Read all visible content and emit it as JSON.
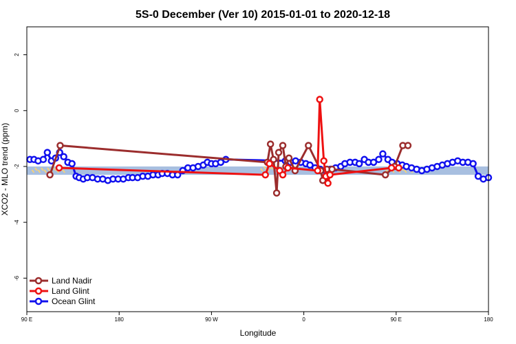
{
  "chart_data": {
    "type": "line",
    "title": "5S-0 December (Ver 10)   2015-01-01 to 2020-12-18",
    "xlabel": "Longitude",
    "ylabel": "XCO2 - MLO trend (ppm)",
    "xlim": [
      90,
      540
    ],
    "ylim": [
      -7.2,
      3.0
    ],
    "x_ticks": [
      {
        "value": 90,
        "label": "90 E"
      },
      {
        "value": 180,
        "label": "180"
      },
      {
        "value": 270,
        "label": "90 W"
      },
      {
        "value": 360,
        "label": "0"
      },
      {
        "value": 450,
        "label": "90 E"
      },
      {
        "value": 540,
        "label": "180"
      }
    ],
    "y_ticks": [
      {
        "value": 2,
        "label": "2"
      },
      {
        "value": 0,
        "label": "0"
      },
      {
        "value": -2,
        "label": "-2"
      },
      {
        "value": -4,
        "label": "-4"
      },
      {
        "value": -6,
        "label": "-6"
      }
    ],
    "reference_band": {
      "y_min": -2.3,
      "y_max": -2.0,
      "color": "#a8bfe0"
    },
    "land_mask": {
      "color": "#f5d27a",
      "label": "land regions (shaded)"
    },
    "series": [
      {
        "name": "Land Nadir",
        "color": "#9b2d2d",
        "x": [
          112.5,
          122.5,
          324.5,
          327.5,
          330.5,
          333.5,
          335.5,
          339.5,
          342.5,
          345.5,
          351.5,
          364.5,
          376.5,
          378.5,
          382.5,
          387.5,
          439.5,
          448.5,
          456.5,
          461.5
        ],
        "y": [
          -2.3,
          -1.25,
          -1.85,
          -1.2,
          -1.75,
          -2.95,
          -1.5,
          -1.25,
          -2.0,
          -1.7,
          -2.15,
          -1.25,
          -2.15,
          -2.5,
          -2.1,
          -2.1,
          -2.3,
          -2.0,
          -1.25,
          -1.25
        ]
      },
      {
        "name": "Land Glint",
        "color": "#ee1111",
        "x": [
          121.5,
          322.5,
          326.5,
          336.5,
          339.5,
          344.5,
          373.5,
          375.5,
          379.5,
          381.5,
          383.5,
          385.5,
          445.5,
          452.5
        ],
        "y": [
          -2.05,
          -2.3,
          -1.9,
          -2.15,
          -2.3,
          -2.05,
          -2.15,
          0.4,
          -1.8,
          -2.35,
          -2.6,
          -2.3,
          -2.05,
          -2.05
        ]
      },
      {
        "name": "Ocean Glint",
        "color": "#1111ee",
        "x": [
          93,
          97,
          101,
          106,
          110,
          114,
          118,
          122,
          126,
          130,
          134,
          138,
          141,
          145,
          149,
          154,
          159,
          164,
          169,
          174,
          179,
          184,
          189,
          193,
          198,
          203,
          208,
          213,
          218,
          222,
          227,
          232,
          237,
          242,
          247,
          252,
          257,
          262,
          266,
          270,
          274,
          279,
          284,
          342,
          347,
          352,
          357,
          362,
          366,
          371,
          376,
          381,
          386,
          391,
          396,
          400,
          405,
          410,
          414,
          419,
          423,
          428,
          433,
          437,
          442,
          446,
          451,
          456,
          460,
          465,
          470,
          475,
          480,
          485,
          490,
          495,
          500,
          505,
          510,
          515,
          520,
          525,
          530,
          535,
          540
        ],
        "y": [
          -1.75,
          -1.75,
          -1.8,
          -1.75,
          -1.5,
          -1.8,
          -1.7,
          -1.5,
          -1.65,
          -1.85,
          -1.9,
          -2.35,
          -2.4,
          -2.45,
          -2.4,
          -2.4,
          -2.45,
          -2.45,
          -2.5,
          -2.45,
          -2.45,
          -2.45,
          -2.4,
          -2.4,
          -2.4,
          -2.35,
          -2.35,
          -2.3,
          -2.3,
          -2.25,
          -2.25,
          -2.3,
          -2.3,
          -2.15,
          -2.05,
          -2.05,
          -2.0,
          -1.95,
          -1.85,
          -1.9,
          -1.9,
          -1.85,
          -1.75,
          -1.8,
          -1.85,
          -1.8,
          -1.85,
          -1.9,
          -1.95,
          -2.05,
          -2.1,
          -2.15,
          -2.1,
          -2.05,
          -2.0,
          -1.9,
          -1.85,
          -1.85,
          -1.9,
          -1.75,
          -1.85,
          -1.85,
          -1.75,
          -1.55,
          -1.75,
          -1.85,
          -1.9,
          -1.95,
          -2.0,
          -2.05,
          -2.1,
          -2.15,
          -2.1,
          -2.05,
          -2.0,
          -1.95,
          -1.9,
          -1.85,
          -1.8,
          -1.85,
          -1.85,
          -1.9,
          -2.35,
          -2.45,
          -2.4
        ]
      }
    ],
    "legend": {
      "position": "bottom-left",
      "entries": [
        "Land Nadir",
        "Land Glint",
        "Ocean Glint"
      ]
    }
  }
}
